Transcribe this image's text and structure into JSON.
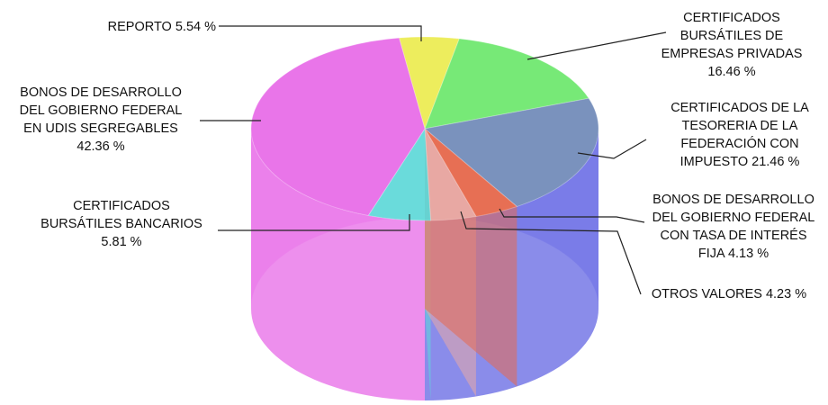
{
  "chart_data": {
    "type": "pie",
    "variant": "3d-cylinder",
    "title": "",
    "slices": [
      {
        "label_lines": [
          "REPORTO 5.54 %"
        ],
        "value": 5.54,
        "color": "#ecec50"
      },
      {
        "label_lines": [
          "CERTIFICADOS",
          "BURSÁTILES DE",
          "EMPRESAS PRIVADAS",
          "16.46 %"
        ],
        "value": 16.46,
        "color": "#6ce86c"
      },
      {
        "label_lines": [
          "CERTIFICADOS DE LA",
          "TESORERIA DE LA",
          "FEDERACIÓN CON",
          "IMPUESTO 21.46 %"
        ],
        "value": 21.46,
        "color": "#6f89b8"
      },
      {
        "label_lines": [
          "BONOS DE DESARROLLO",
          "DEL GOBIERNO FEDERAL",
          "CON TASA DE INTERÉS",
          "FIJA 4.13 %"
        ],
        "value": 4.13,
        "color": "#e76a4e"
      },
      {
        "label_lines": [
          "OTROS VALORES 4.23 %"
        ],
        "value": 4.23,
        "color": "#e8aaa6"
      },
      {
        "label_lines": [
          "CERTIFICADOS",
          "BURSÁTILES BANCARIOS",
          "5.81 %"
        ],
        "value": 5.81,
        "color": "#5ed8d8"
      },
      {
        "label_lines": [
          "BONOS DE DESARROLLO",
          "DEL GOBIERNO FEDERAL",
          "EN UDIS SEGREGABLES",
          "42.36 %"
        ],
        "value": 42.36,
        "color": "#e86ae8"
      }
    ],
    "side_color_right": "#6b6ee6",
    "legend": "none"
  }
}
